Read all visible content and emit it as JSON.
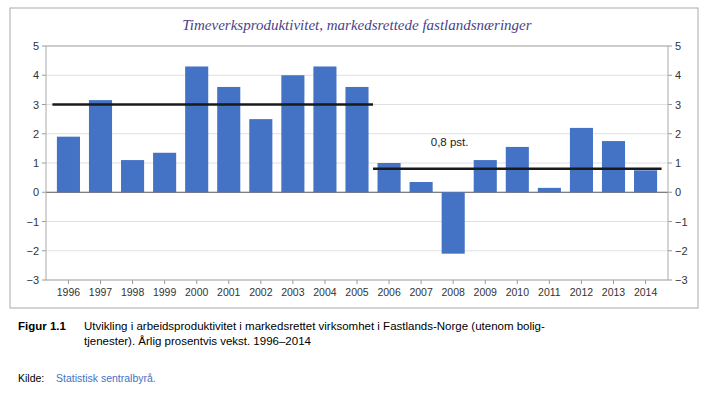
{
  "chart_data": {
    "type": "bar",
    "title": "Timeverksproduktivitet, markedsrettede fastlandsnæringer",
    "series": [
      {
        "type": "bar",
        "color": "#4472C4",
        "x": [
          1996,
          1997,
          1998,
          1999,
          2000,
          2001,
          2002,
          2003,
          2004,
          2005,
          2006,
          2007,
          2008,
          2009,
          2010,
          2011,
          2012,
          2013,
          2014
        ],
        "values": [
          1.9,
          3.15,
          1.1,
          1.35,
          4.3,
          3.6,
          2.5,
          4.0,
          4.3,
          3.6,
          1.0,
          0.35,
          -2.1,
          1.1,
          1.55,
          0.15,
          2.2,
          1.75,
          0.75
        ]
      },
      {
        "type": "line",
        "color": "#1a1a1a",
        "x": [
          1995.5,
          2005.5
        ],
        "values": [
          3.0,
          3.0
        ]
      },
      {
        "type": "line",
        "color": "#1a1a1a",
        "x": [
          2005.5,
          2014.5
        ],
        "values": [
          0.8,
          0.8
        ]
      }
    ],
    "annotations": [
      {
        "text": "0,8 pst.",
        "x": 2007.3,
        "y": 1.5
      }
    ],
    "xlim": [
      1995.3,
      2014.7
    ],
    "xticks": [
      1996,
      1997,
      1998,
      1999,
      2000,
      2001,
      2002,
      2003,
      2004,
      2005,
      2006,
      2007,
      2008,
      2009,
      2010,
      2011,
      2012,
      2013,
      2014
    ],
    "ylim": [
      -3,
      5
    ],
    "yticks": [
      {
        "value": -3,
        "label": "−3"
      },
      {
        "value": -2,
        "label": "−2"
      },
      {
        "value": -1,
        "label": "−1"
      },
      0,
      1,
      2,
      3,
      4,
      5
    ],
    "y2lim": [
      -3,
      5
    ],
    "y2ticks": [
      {
        "value": -3,
        "label": "−3"
      },
      {
        "value": -2,
        "label": "−2"
      },
      {
        "value": -1,
        "label": "−1"
      },
      0,
      1,
      2,
      3,
      4,
      5
    ],
    "grid": true,
    "caption": {
      "label": "Figur 1.1",
      "text": "Utvikling i arbeidsproduktivitet i markedsrettet virksomhet i Fastlands-Norge (utenom bolig-\ntjenester). Årlig prosentvis vekst. 1996–2014"
    },
    "source": {
      "label": "Kilde:",
      "text": "Statistisk sentralbyrå."
    }
  }
}
